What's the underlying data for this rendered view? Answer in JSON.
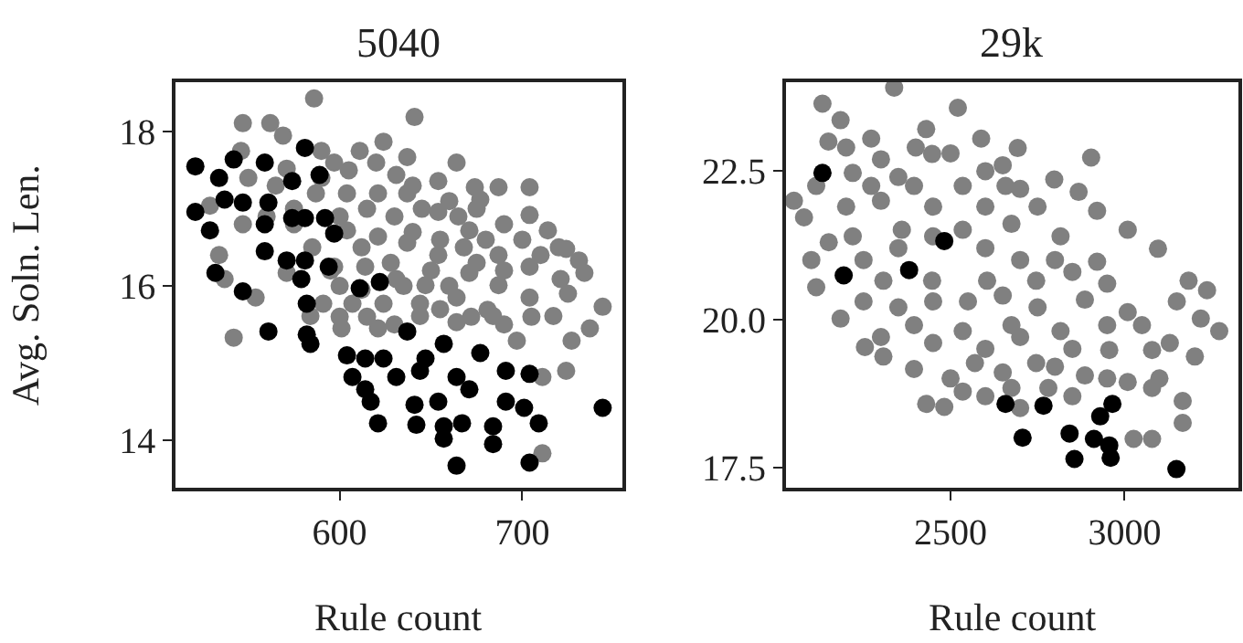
{
  "chart_data": [
    {
      "type": "scatter",
      "title": "5040",
      "xlabel": "Rule count",
      "ylabel": "Avg. Soln. Len.",
      "xlim": [
        510,
        755
      ],
      "ylim": [
        13.38,
        18.64
      ],
      "xticks": [
        600,
        700
      ],
      "yticks": [
        14,
        16,
        18
      ],
      "marker": "circle",
      "series": [
        {
          "color": "#808080",
          "x": [
            586,
            641,
            547,
            562,
            569,
            664,
            611,
            624,
            637,
            597,
            654,
            674,
            687,
            704,
            677,
            704,
            714,
            724,
            731,
            734,
            721,
            744,
            737,
            727,
            724,
            711,
            711,
            542,
            537,
            529,
            534,
            554,
            571,
            584,
            601,
            621,
            644,
            664,
            684,
            697,
            604,
            621,
            637,
            654,
            671,
            687,
            704,
            604,
            621,
            637,
            654,
            671,
            687,
            704,
            717,
            597,
            614,
            631,
            647,
            664,
            681,
            591,
            607,
            624,
            644,
            571,
            587,
            631,
            547,
            546,
            575,
            590,
            605,
            615,
            630,
            645,
            660,
            600,
            612,
            628,
            640,
            655,
            668,
            680,
            690,
            700,
            612,
            635,
            650,
            660,
            675,
            690,
            710,
            720,
            600,
            615,
            630,
            655,
            672,
            690,
            705,
            725,
            600,
            585,
            595,
            575,
            560,
            565,
            550,
            640,
            665,
            675,
            620,
            590
          ],
          "values": [
            18.43,
            18.19,
            18.11,
            18.11,
            17.95,
            17.6,
            17.75,
            17.87,
            17.67,
            17.6,
            17.36,
            17.28,
            17.28,
            17.28,
            17.12,
            16.92,
            16.72,
            16.48,
            16.33,
            16.17,
            16.09,
            15.73,
            15.45,
            15.29,
            14.9,
            14.82,
            13.83,
            15.33,
            16.09,
            17.04,
            16.4,
            15.85,
            16.17,
            15.61,
            15.45,
            15.45,
            15.61,
            15.53,
            15.61,
            15.29,
            17.2,
            17.2,
            17.2,
            16.96,
            16.72,
            16.4,
            16.25,
            16.72,
            16.64,
            16.56,
            16.4,
            16.17,
            16.01,
            15.85,
            15.61,
            16.25,
            16.25,
            16.09,
            16.01,
            15.85,
            15.69,
            15.77,
            15.77,
            15.77,
            15.77,
            17.52,
            17.2,
            17.44,
            16.8,
            17.75,
            17.0,
            17.4,
            17.5,
            17.0,
            16.9,
            17.0,
            17.1,
            16.9,
            16.5,
            16.3,
            16.7,
            16.6,
            16.5,
            16.6,
            16.8,
            16.6,
            15.95,
            16.0,
            16.2,
            16.0,
            16.3,
            16.2,
            16.4,
            16.5,
            15.6,
            15.6,
            15.5,
            15.7,
            15.6,
            15.5,
            15.6,
            15.9,
            16.0,
            16.5,
            16.2,
            16.8,
            16.9,
            17.3,
            17.4,
            17.3,
            16.9,
            17.0,
            17.6,
            17.75
          ]
        },
        {
          "color": "#000000",
          "x": [
            521,
            534,
            542,
            559,
            581,
            574,
            589,
            521,
            529,
            537,
            547,
            561,
            559,
            574,
            581,
            592,
            597,
            559,
            571,
            581,
            594,
            532,
            547,
            579,
            582,
            611,
            622,
            561,
            582,
            584,
            604,
            637,
            657,
            677,
            614,
            624,
            647,
            607,
            614,
            631,
            644,
            664,
            691,
            704,
            617,
            641,
            654,
            671,
            691,
            701,
            621,
            642,
            657,
            667,
            684,
            709,
            684,
            664,
            704,
            744,
            657
          ],
          "values": [
            17.55,
            17.4,
            17.64,
            17.6,
            17.79,
            17.36,
            17.44,
            16.96,
            16.72,
            17.12,
            17.08,
            17.08,
            16.8,
            16.88,
            16.88,
            16.88,
            16.68,
            16.45,
            16.33,
            16.33,
            16.25,
            16.17,
            15.93,
            16.09,
            15.77,
            15.97,
            16.05,
            15.41,
            15.37,
            15.25,
            15.1,
            15.41,
            15.25,
            15.13,
            15.06,
            15.06,
            15.06,
            14.82,
            14.66,
            14.82,
            14.9,
            14.82,
            14.9,
            14.86,
            14.5,
            14.46,
            14.5,
            14.66,
            14.5,
            14.42,
            14.22,
            14.2,
            14.18,
            14.22,
            14.18,
            14.22,
            13.95,
            13.67,
            13.71,
            14.42,
            14.02
          ]
        }
      ]
    },
    {
      "type": "scatter",
      "title": "29k",
      "xlabel": "Rule count",
      "xlim": [
        2026,
        3326
      ],
      "ylim": [
        17.15,
        24.0
      ],
      "xticks": [
        2500,
        3000
      ],
      "yticks": [
        17.5,
        {
          "value": 20,
          "label": "20.0"
        },
        22.5
      ],
      "marker": "circle",
      "series": [
        {
          "color": "#808080",
          "x": [
            2338,
            2132,
            2184,
            2521,
            2149,
            2272,
            2430,
            2588,
            2693,
            2904,
            2079,
            2114,
            2184,
            2254,
            2307,
            2395,
            2430,
            2482,
            2535,
            2675,
            2781,
            2798,
            2868,
            2921,
            3009,
            3096,
            3184,
            3237,
            3272,
            3219,
            3202,
            3167,
            3167,
            3079,
            3026,
            3079,
            2272,
            2395,
            2535,
            2658,
            2219,
            2360,
            2535,
            2675,
            2816,
            2921,
            2307,
            2447,
            2605,
            2746,
            2886,
            3009,
            2395,
            2535,
            2675,
            2816,
            2956,
            3079,
            2570,
            2746,
            2886,
            3009,
            2219,
            2114,
            2447,
            2200,
            2300,
            2400,
            2500,
            2600,
            2200,
            2300,
            2450,
            2600,
            2750,
            2150,
            2250,
            2350,
            2450,
            2600,
            2700,
            2800,
            2850,
            2250,
            2350,
            2450,
            2550,
            2650,
            2750,
            2950,
            2300,
            2450,
            2600,
            2700,
            2850,
            2950,
            3050,
            2500,
            2650,
            2800,
            2950,
            2600,
            2700,
            2850,
            3100,
            3130,
            3150,
            2350,
            2650,
            2700,
            2050,
            2100
          ],
          "values": [
            23.91,
            23.64,
            23.36,
            23.57,
            23.0,
            23.05,
            23.21,
            23.05,
            22.89,
            22.73,
            21.72,
            20.54,
            20.01,
            19.53,
            19.37,
            19.16,
            18.57,
            18.52,
            18.78,
            18.84,
            18.84,
            22.36,
            22.15,
            21.83,
            21.51,
            21.19,
            20.65,
            20.49,
            19.8,
            20.01,
            19.37,
            18.62,
            18.25,
            17.98,
            17.98,
            18.84,
            22.25,
            22.25,
            22.25,
            22.25,
            21.4,
            21.51,
            21.51,
            21.61,
            21.4,
            20.97,
            20.65,
            20.65,
            20.65,
            20.65,
            20.33,
            20.12,
            19.9,
            19.8,
            19.9,
            19.8,
            19.48,
            19.48,
            19.26,
            19.26,
            19.05,
            18.94,
            22.47,
            22.25,
            22.79,
            22.9,
            22.7,
            22.9,
            22.8,
            22.5,
            21.9,
            22.0,
            21.9,
            21.9,
            21.9,
            21.3,
            21.0,
            21.2,
            21.4,
            21.2,
            21.0,
            21.0,
            20.8,
            20.3,
            20.2,
            20.3,
            20.3,
            20.4,
            20.2,
            20.6,
            19.7,
            19.6,
            19.5,
            19.7,
            19.5,
            19.9,
            19.9,
            19.0,
            19.1,
            19.2,
            19.0,
            18.7,
            18.5,
            18.7,
            19.0,
            19.6,
            20.3,
            22.4,
            22.6,
            22.2,
            22.0,
            21.0
          ]
        },
        {
          "color": "#000000",
          "x": [
            2132,
            2193,
            2381,
            2482,
            2658,
            2767,
            2707,
            2842,
            2965,
            2930,
            2912,
            2956,
            2856,
            2960,
            3149
          ],
          "values": [
            22.47,
            20.74,
            20.83,
            21.32,
            18.57,
            18.54,
            18.0,
            18.07,
            18.57,
            18.36,
            17.98,
            17.87,
            17.64,
            17.66,
            17.47
          ]
        }
      ]
    }
  ]
}
